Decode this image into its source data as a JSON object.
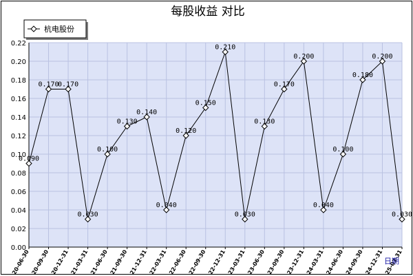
{
  "chart_data": {
    "type": "line",
    "title": "每股收益  对比",
    "xlabel": "日期",
    "ylabel": "",
    "ylim": [
      0.0,
      0.22
    ],
    "yticks": [
      "0.00",
      "0.02",
      "0.04",
      "0.06",
      "0.08",
      "0.10",
      "0.12",
      "0.14",
      "0.16",
      "0.18",
      "0.20",
      "0.22"
    ],
    "categories": [
      "2020-06-30",
      "2020-09-30",
      "2020-12-31",
      "2021-03-31",
      "2021-06-30",
      "2021-09-30",
      "2021-12-31",
      "2022-03-31",
      "2022-06-30",
      "2022-09-30",
      "2022-12-31",
      "2023-03-31",
      "2023-06-30",
      "2023-09-30",
      "2023-12-31",
      "2024-03-31",
      "2024-06-30",
      "2024-09-30",
      "2024-12-31",
      "2025-03-31"
    ],
    "series": [
      {
        "name": "杭电股份",
        "values": [
          0.09,
          0.17,
          0.17,
          0.03,
          0.1,
          0.13,
          0.14,
          0.04,
          0.12,
          0.15,
          0.21,
          0.03,
          0.13,
          0.17,
          0.2,
          0.04,
          0.1,
          0.18,
          0.2,
          0.03
        ],
        "labels": [
          "0.090",
          "0.170",
          "0.170",
          "0.030",
          "0.100",
          "0.130",
          "0.140",
          "0.040",
          "0.120",
          "0.150",
          "0.210",
          "0.030",
          "0.130",
          "0.170",
          "0.200",
          "0.040",
          "0.100",
          "0.180",
          "0.200",
          "0.030"
        ]
      }
    ],
    "legend_position": "top-left",
    "grid": true,
    "colors": {
      "plot_bg": "#dde3f7",
      "grid": "#b9c1e2",
      "line": "#000000",
      "frame_shadow": "#7f7f7f"
    }
  }
}
